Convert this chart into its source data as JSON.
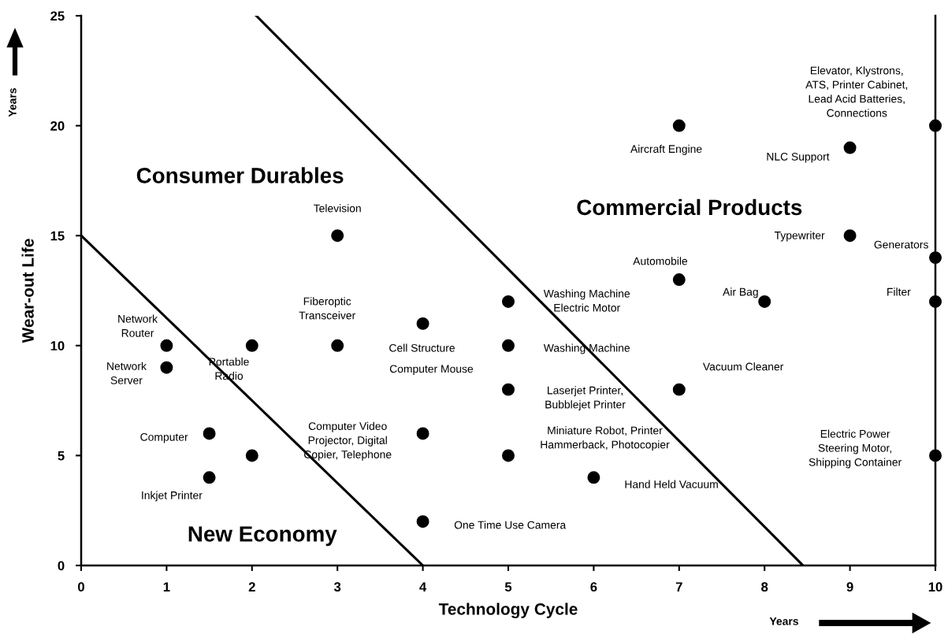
{
  "chart_data": {
    "type": "scatter",
    "xlabel": "Technology Cycle",
    "ylabel": "Wear-out Life",
    "xlim": [
      0,
      10
    ],
    "ylim": [
      0,
      25
    ],
    "xticks": [
      0,
      1,
      2,
      3,
      4,
      5,
      6,
      7,
      8,
      9,
      10
    ],
    "yticks": [
      0,
      5,
      10,
      15,
      20,
      25
    ],
    "grid": false,
    "legend": false,
    "marker": "circle",
    "series": [
      {
        "color": "#000000",
        "x": [
          1,
          1,
          1.5,
          1.5,
          2,
          2,
          3,
          3,
          4,
          4,
          4,
          5,
          5,
          5,
          5,
          6,
          7,
          7,
          7,
          8,
          9,
          9,
          10,
          10,
          10,
          10
        ],
        "values": [
          10,
          9,
          6,
          4,
          10,
          5,
          15,
          10,
          11,
          6,
          2,
          12,
          10,
          8,
          5,
          4,
          20,
          13,
          8,
          12,
          19,
          15,
          20,
          14,
          12,
          5
        ]
      },
      {
        "type": "line",
        "color": "#000000",
        "line_style": "solid",
        "marker": "none",
        "x": [
          0,
          4
        ],
        "values": [
          15,
          0
        ]
      },
      {
        "type": "line",
        "color": "#000000",
        "line_style": "solid",
        "marker": "none",
        "x": [
          2.05,
          8.45
        ],
        "values": [
          25,
          0
        ]
      }
    ],
    "annotations": [
      "Consumer Durables",
      "Commercial Products",
      "New Economy",
      "Years",
      "Years",
      {
        "text": "Network\nRouter",
        "x": 1,
        "y": 10
      },
      {
        "text": "Network\nServer",
        "x": 1,
        "y": 9
      },
      {
        "text": "Portable\nRadio",
        "x": 2,
        "y": 10
      },
      {
        "text": "Computer",
        "x": 1.5,
        "y": 6
      },
      {
        "text": "Inkjet Printer",
        "x": 1.5,
        "y": 4
      },
      {
        "text": "Television",
        "x": 3,
        "y": 15
      },
      {
        "text": "Fiberoptic\nTransceiver",
        "x": 3,
        "y": 10
      },
      {
        "text": "Cell Structure",
        "x": 4,
        "y": 11
      },
      "Computer Video\nProjector, Digital\nCopier, Telephone",
      {
        "text": "One Time Use Camera",
        "x": 4,
        "y": 2
      },
      "Washing Machine\nElectric Motor",
      "Washing Machine",
      "Computer Mouse",
      "Laserjet Printer,\nBubblejet Printer",
      "Miniature Robot, Printer\nHammerback, Photocopier",
      {
        "text": "Hand Held Vacuum",
        "x": 6,
        "y": 4
      },
      {
        "text": "Vacuum Cleaner",
        "x": 7,
        "y": 8
      },
      {
        "text": "Aircraft Engine",
        "x": 7,
        "y": 20
      },
      {
        "text": "Automobile",
        "x": 7,
        "y": 13
      },
      {
        "text": "Air Bag",
        "x": 8,
        "y": 12
      },
      {
        "text": "Elevator, Klystrons,\nATS, Printer Cabinet,\nLead Acid Batteries,\nConnections",
        "x": 10,
        "y": 20
      },
      {
        "text": "NLC Support",
        "x": 9,
        "y": 19
      },
      {
        "text": "Typewriter",
        "x": 9,
        "y": 15
      },
      {
        "text": "Generators",
        "x": 10,
        "y": 14
      },
      {
        "text": "Filter",
        "x": 10,
        "y": 12
      },
      "Electric Power\nSteering Motor,\nShipping Container"
    ]
  }
}
